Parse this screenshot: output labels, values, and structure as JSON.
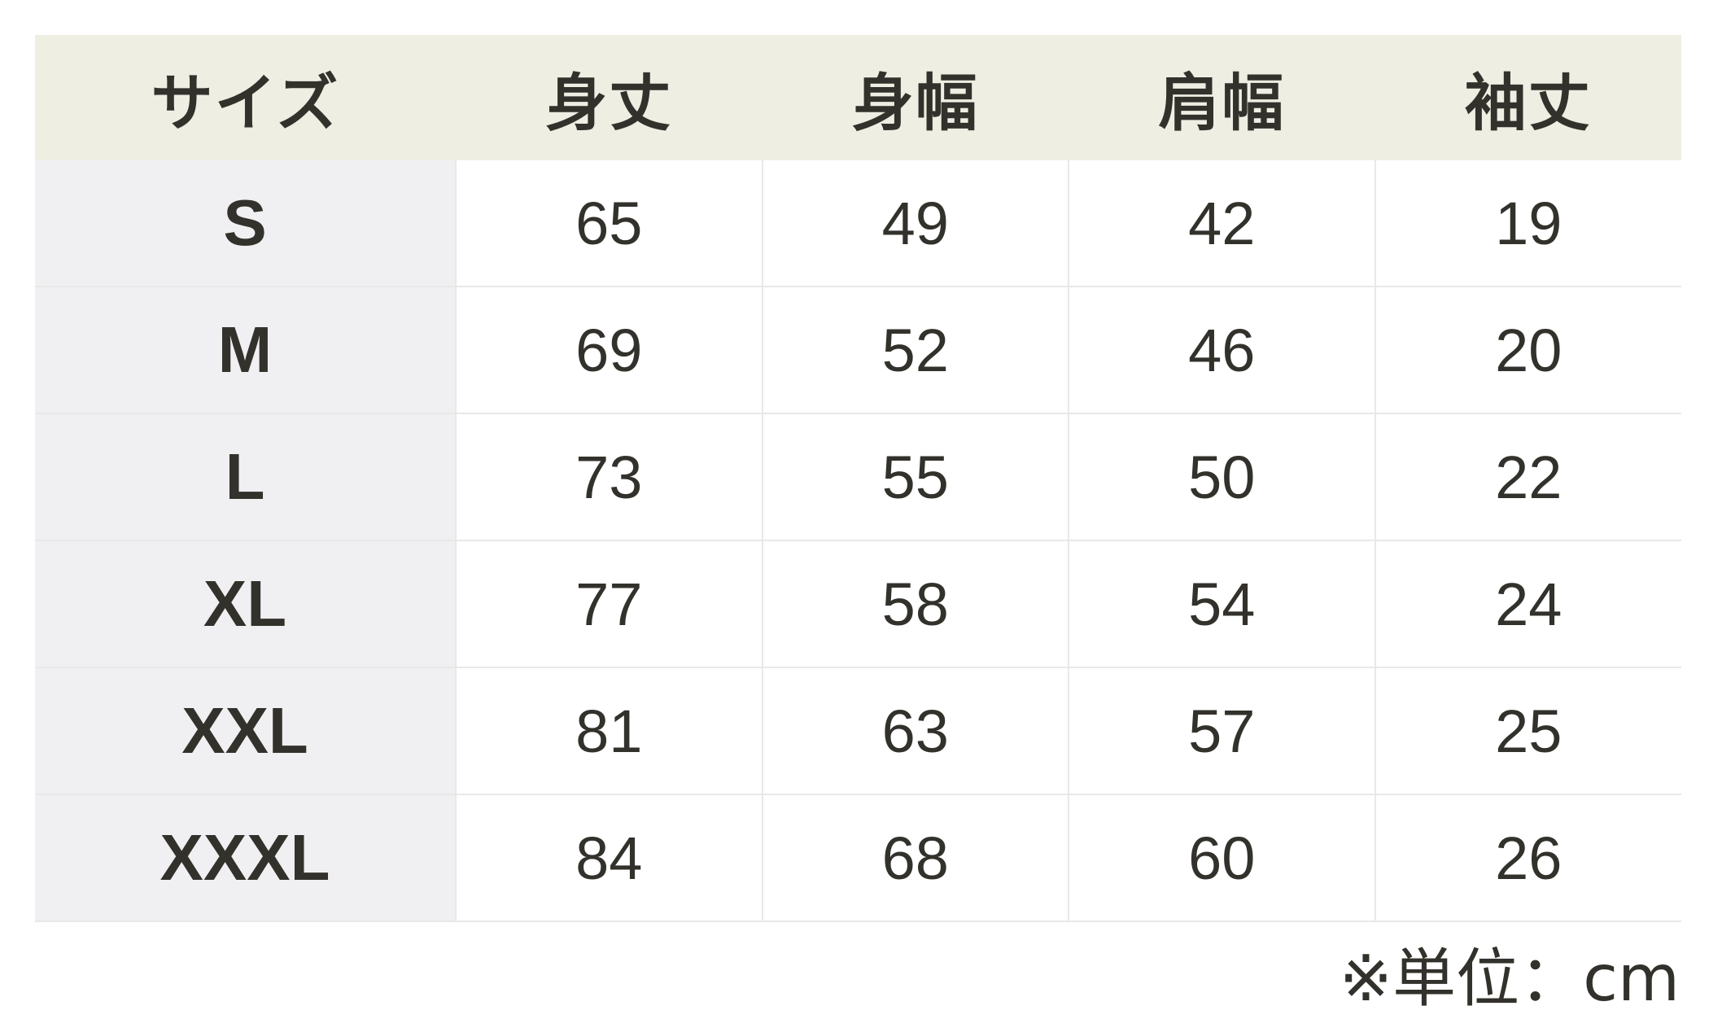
{
  "headers": [
    "サイズ",
    "身丈",
    "身幅",
    "肩幅",
    "袖丈"
  ],
  "rows": [
    [
      "S",
      "65",
      "49",
      "42",
      "19"
    ],
    [
      "M",
      "69",
      "52",
      "46",
      "20"
    ],
    [
      "L",
      "73",
      "55",
      "50",
      "22"
    ],
    [
      "XL",
      "77",
      "58",
      "54",
      "24"
    ],
    [
      "XXL",
      "81",
      "63",
      "57",
      "25"
    ],
    [
      "XXXL",
      "84",
      "68",
      "60",
      "26"
    ]
  ],
  "note": "※単位：cm",
  "colors": {
    "header_bg": "#eeeee3",
    "size_col_bg": "#f0f0f2",
    "text": "#33312b"
  }
}
